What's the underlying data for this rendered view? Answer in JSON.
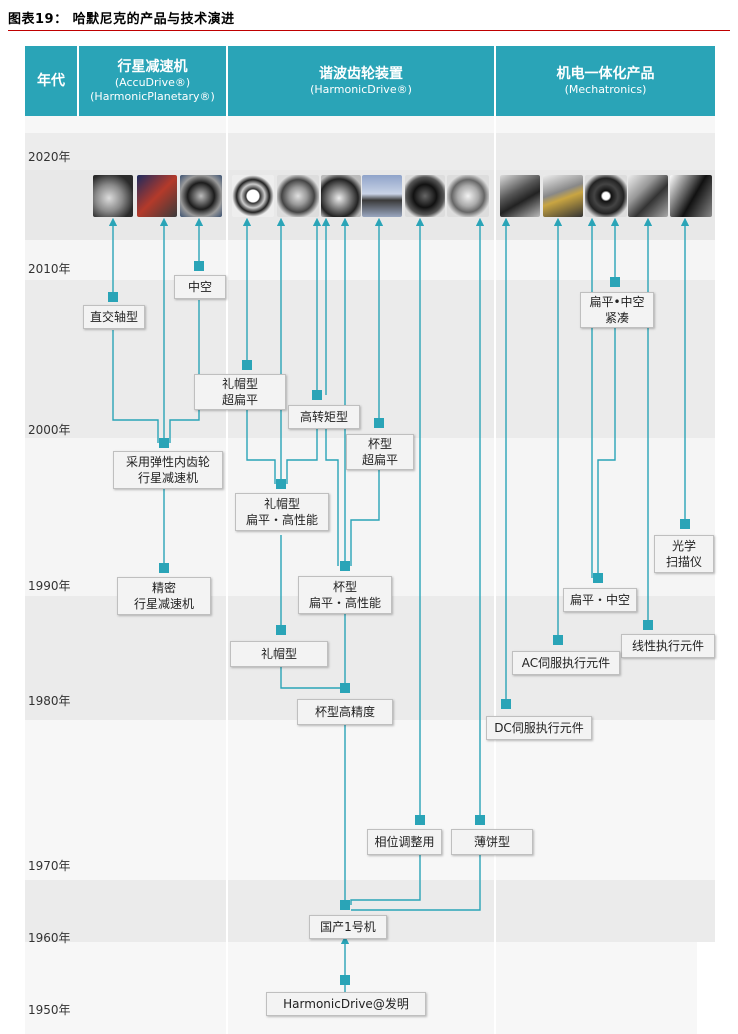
{
  "title": "图表19：  哈默尼克的产品与技术演进",
  "header": {
    "year_col": "年代",
    "col1": {
      "line1": "行星减速机",
      "line2": "(AccuDrive®)",
      "line3": "(HarmonicPlanetary®)"
    },
    "col2": {
      "line1": "谐波齿轮装置",
      "line2": "(HarmonicDrive®)"
    },
    "col3": {
      "line1": "机电一体化产品",
      "line2": "(Mechatronics)"
    }
  },
  "years": [
    "2020年",
    "2010年",
    "2000年",
    "1990年",
    "1980年",
    "1970年",
    "1960年",
    "1950年"
  ],
  "boxes": {
    "b_zhijiao": "直交轴型",
    "b_zhongkong": "中空",
    "b_caiyong": "采用弹性内齿轮\n行星减速机",
    "b_jingmi": "精密\n行星减速机",
    "b_limao_chao": "礼帽型\n超扁平",
    "b_gaozhuan": "高转矩型",
    "b_beixing_chao": "杯型\n超扁平",
    "b_limao_bian": "礼帽型\n扁平・高性能",
    "b_beixing_bian": "杯型\n扁平・高性能",
    "b_limao": "礼帽型",
    "b_beigao": "杯型高精度",
    "b_xiangwei": "相位调整用",
    "b_baobing": "薄饼型",
    "b_guochan": "国产1号机",
    "b_faming": "HarmonicDrive@发明",
    "b_bianping_jin": "扁平•中空\n紧凑",
    "b_guangxue": "光学\n扫描仪",
    "b_bianping_zk": "扁平・中空",
    "b_xianxing": "线性执行元件",
    "b_ac": "AC伺服执行元件",
    "b_dc": "DC伺服执行元件"
  },
  "colors": {
    "accent": "#2aa4b7",
    "band_dark": "#e4e4e4",
    "band_light": "#f4f4f4",
    "title_rule": "#c00000"
  }
}
